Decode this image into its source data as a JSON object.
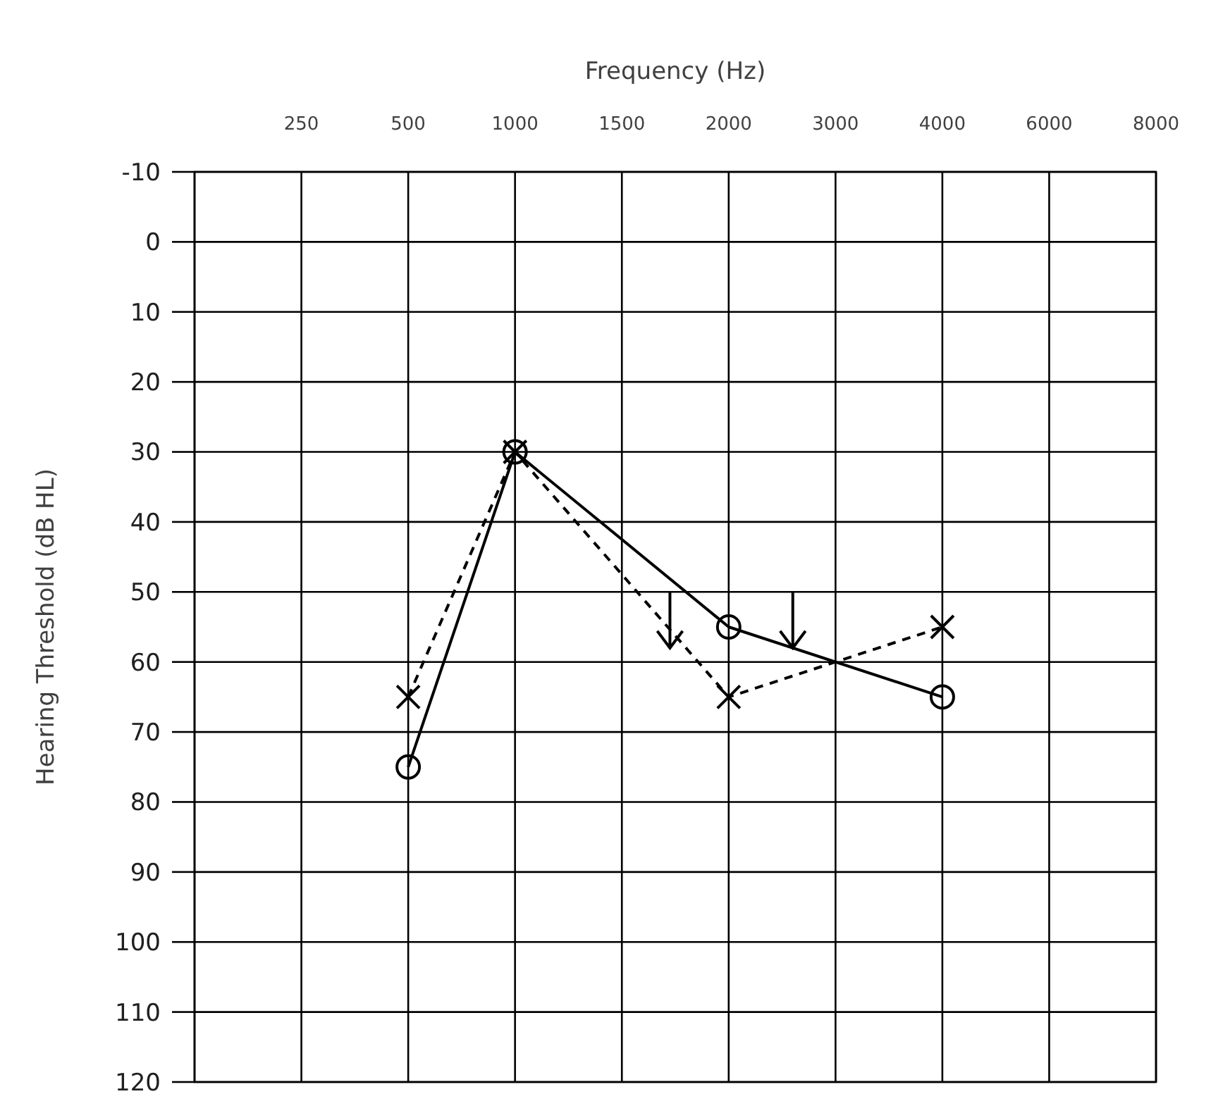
{
  "chart_data": {
    "type": "line",
    "xlabel": "Frequency (Hz)",
    "ylabel": "Hearing Threshold (dB HL)",
    "categories": [
      null,
      "250",
      "500",
      "1000",
      "1500",
      "2000",
      "3000",
      "4000",
      "6000",
      "8000"
    ],
    "series": [
      {
        "values": [
          null,
          null,
          75,
          30,
          null,
          55,
          null,
          65,
          null,
          null
        ],
        "color": "#000000",
        "marker": "circle",
        "line_style": "solid"
      },
      {
        "values": [
          null,
          null,
          65,
          30,
          null,
          65,
          null,
          55,
          null,
          null
        ],
        "color": "#000000",
        "marker": "cross",
        "line_style": "dashed"
      }
    ],
    "ylim": [
      120,
      -10
    ],
    "yticks": [
      -10,
      0,
      10,
      20,
      30,
      40,
      50,
      60,
      70,
      80,
      90,
      100,
      110,
      120
    ],
    "grid": true
  }
}
